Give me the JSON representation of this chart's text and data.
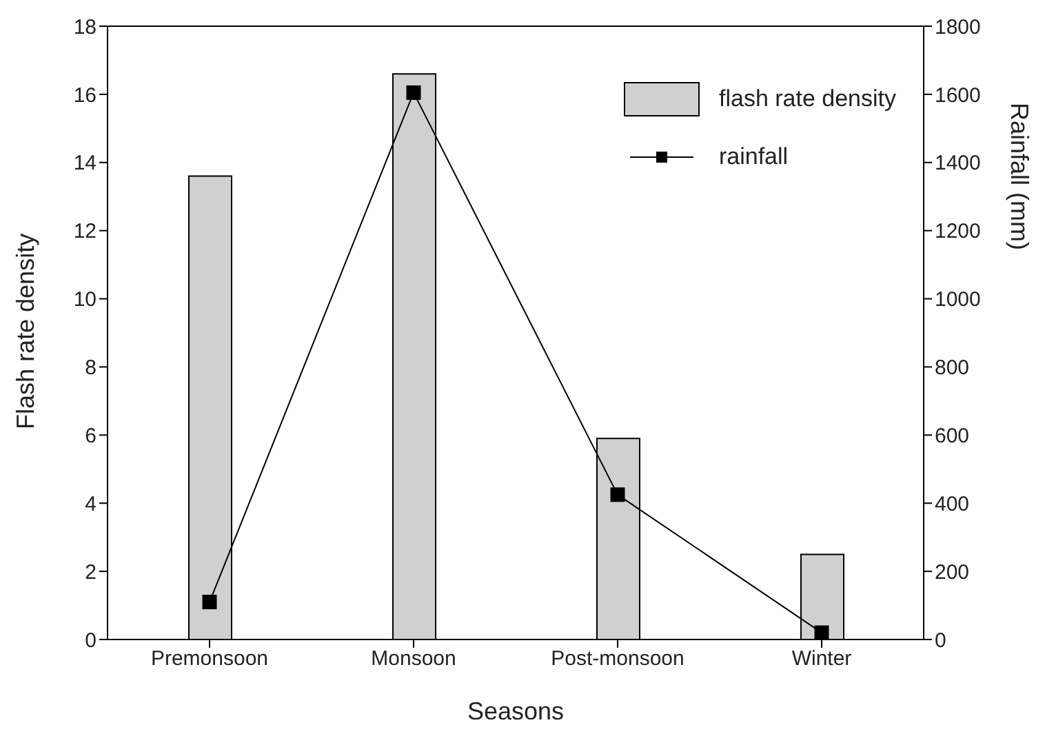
{
  "chart_data": {
    "type": "bar",
    "xlabel": "Seasons",
    "ylabel": "Flash rate density",
    "y2label": "Rainfall (mm)",
    "categories": [
      "Premonsoon",
      "Monsoon",
      "Post-monsoon",
      "Winter"
    ],
    "series": [
      {
        "name": "flash rate density",
        "color": "#d0d0d0",
        "values": [
          13.6,
          16.6,
          5.9,
          2.5
        ]
      },
      {
        "name": "rainfall",
        "type": "line",
        "axis": "y2",
        "color": "#000000",
        "marker": "square",
        "values": [
          110,
          1605,
          425,
          20
        ]
      }
    ],
    "ylim": [
      0,
      18
    ],
    "yticks": [
      0,
      2,
      4,
      6,
      8,
      10,
      12,
      14,
      16,
      18
    ],
    "y2lim": [
      0,
      1800
    ],
    "y2ticks": [
      0,
      200,
      400,
      600,
      800,
      1000,
      1200,
      1400,
      1600,
      1800
    ],
    "legend": "top right",
    "grid": false
  }
}
